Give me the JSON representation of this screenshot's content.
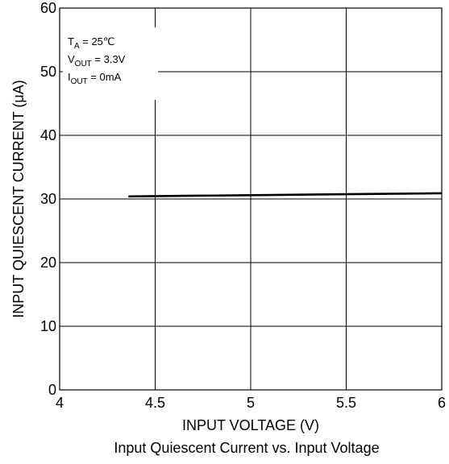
{
  "chart_data": {
    "type": "line",
    "title": "Input Quiescent Current vs. Input Voltage",
    "xlabel": "INPUT VOLTAGE (V)",
    "ylabel": "INPUT QUIESCENT CURRENT (μA)",
    "xlim": [
      4,
      6
    ],
    "ylim": [
      0,
      60
    ],
    "x_ticks": [
      4,
      4.5,
      5,
      5.5,
      6
    ],
    "x_tick_labels": [
      "4",
      "4.5",
      "5",
      "5.5",
      "6"
    ],
    "y_ticks": [
      0,
      10,
      20,
      30,
      40,
      50,
      60
    ],
    "y_tick_labels": [
      "0",
      "10",
      "20",
      "30",
      "40",
      "50",
      "60"
    ],
    "grid": true,
    "legend": "none",
    "series": [
      {
        "x": [
          4.36,
          5.0,
          5.5,
          6.0
        ],
        "y": [
          30.4,
          30.6,
          30.75,
          30.9
        ]
      }
    ],
    "conditions": [
      {
        "main": "T",
        "sub": "A",
        "rest": " = 25℃"
      },
      {
        "main": "V",
        "sub": "OUT",
        "rest": " = 3.3V"
      },
      {
        "main": "I",
        "sub": "OUT",
        "rest": " = 0mA"
      }
    ],
    "colors": {
      "line": "#000000",
      "grid": "#000000",
      "background": "#ffffff"
    }
  }
}
